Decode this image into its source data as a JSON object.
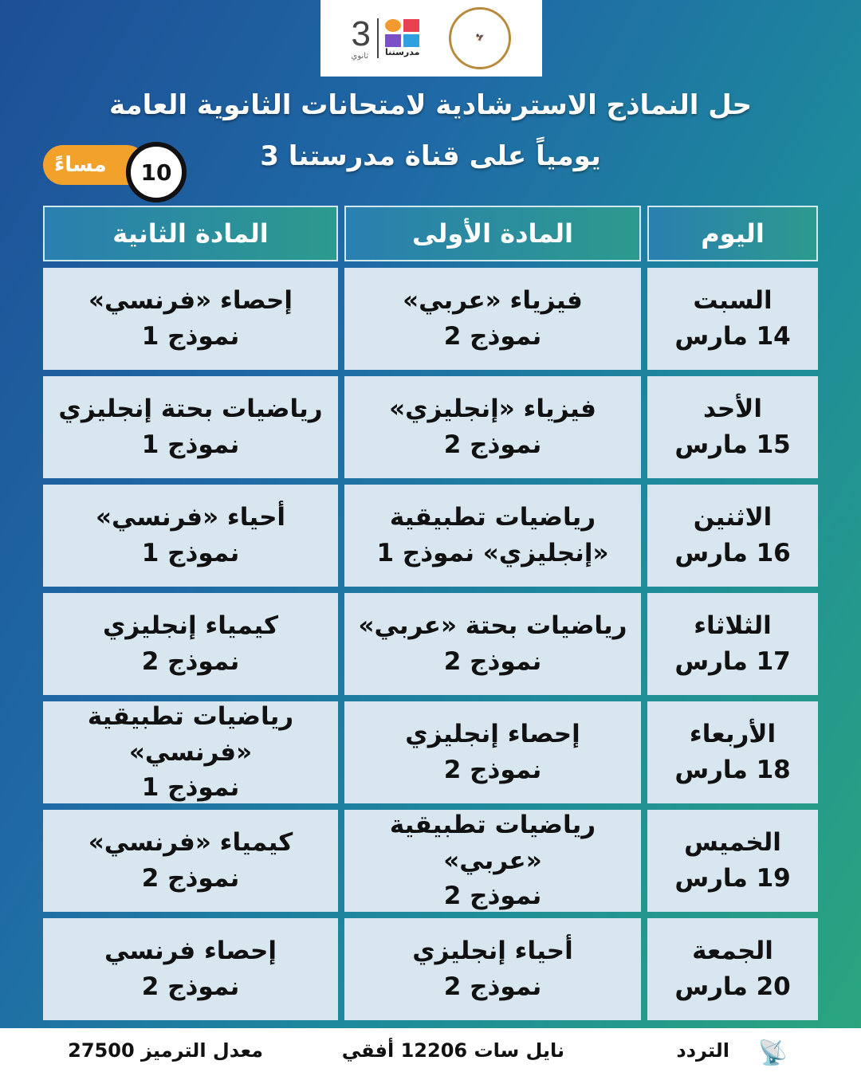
{
  "logos": {
    "ministry": "Ministry of Education and Technical Education",
    "brand_number": "3",
    "brand_sub": "ثانوي",
    "brand_name": "مدرستنا"
  },
  "title_line1": "حل النماذج الاسترشادية لامتحانات الثانوية العامة",
  "title_line2": "يومياً على قناة مدرستنا 3",
  "time": {
    "hour": "10",
    "period": "مساءً"
  },
  "headers": [
    "اليوم",
    "المادة الأولى",
    "المادة الثانية"
  ],
  "rows": [
    {
      "day": "السبت",
      "date": "14 مارس",
      "s1a": "فيزياء «عربي»",
      "s1b": "نموذج 2",
      "s2a": "إحصاء «فرنسي»",
      "s2b": "نموذج 1"
    },
    {
      "day": "الأحد",
      "date": "15 مارس",
      "s1a": "فيزياء «إنجليزي»",
      "s1b": "نموذج 2",
      "s2a": "رياضيات بحتة إنجليزي",
      "s2b": "نموذج 1"
    },
    {
      "day": "الاثنين",
      "date": "16 مارس",
      "s1a": "رياضيات تطبيقية",
      "s1b": "«إنجليزي» نموذج 1",
      "s2a": "أحياء «فرنسي»",
      "s2b": "نموذج 1"
    },
    {
      "day": "الثلاثاء",
      "date": "17 مارس",
      "s1a": "رياضيات بحتة «عربي»",
      "s1b": "نموذج 2",
      "s2a": "كيمياء إنجليزي",
      "s2b": "نموذج 2"
    },
    {
      "day": "الأربعاء",
      "date": "18 مارس",
      "s1a": "إحصاء إنجليزي",
      "s1b": "نموذج 2",
      "s2a": "رياضيات تطبيقية «فرنسي»",
      "s2b": "نموذج 1"
    },
    {
      "day": "الخميس",
      "date": "19 مارس",
      "s1a": "رياضيات تطبيقية «عربي»",
      "s1b": "نموذج 2",
      "s2a": "كيمياء «فرنسي»",
      "s2b": "نموذج 2"
    },
    {
      "day": "الجمعة",
      "date": "20 مارس",
      "s1a": "أحياء إنجليزي",
      "s1b": "نموذج 2",
      "s2a": "إحصاء فرنسي",
      "s2b": "نموذج 2"
    }
  ],
  "footer": {
    "frequency_label": "التردد",
    "frequency": "نايل سات 12206 أفقي",
    "symbol_rate": "معدل الترميز 27500",
    "icon": "satellite-icon"
  }
}
